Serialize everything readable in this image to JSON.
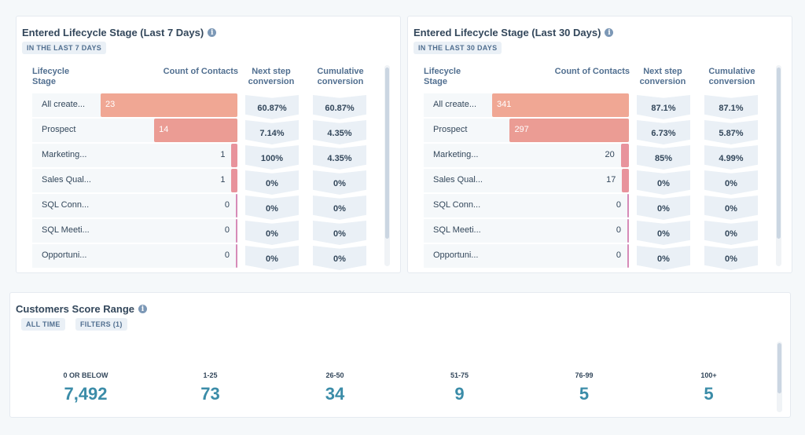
{
  "cards": [
    {
      "title": "Entered Lifecycle Stage (Last 7 Days)",
      "pill": "IN THE LAST 7 DAYS",
      "headers": {
        "stage": "Lifecycle Stage",
        "count": "Count of Contacts",
        "next": "Next step conversion",
        "cumulative": "Cumulative conversion"
      },
      "max": 23,
      "rows": [
        {
          "stage": "All create...",
          "count": 23,
          "count_label": "23",
          "next": "60.87%",
          "cumulative": "60.87%"
        },
        {
          "stage": "Prospect",
          "count": 14,
          "count_label": "14",
          "next": "7.14%",
          "cumulative": "4.35%"
        },
        {
          "stage": "Marketing...",
          "count": 1,
          "count_label": "1",
          "next": "100%",
          "cumulative": "4.35%"
        },
        {
          "stage": "Sales Qual...",
          "count": 1,
          "count_label": "1",
          "next": "0%",
          "cumulative": "0%"
        },
        {
          "stage": "SQL Conn...",
          "count": 0,
          "count_label": "0",
          "next": "0%",
          "cumulative": "0%"
        },
        {
          "stage": "SQL Meeti...",
          "count": 0,
          "count_label": "0",
          "next": "0%",
          "cumulative": "0%"
        },
        {
          "stage": "Opportuni...",
          "count": 0,
          "count_label": "0",
          "next": "0%",
          "cumulative": "0%"
        }
      ]
    },
    {
      "title": "Entered Lifecycle Stage (Last 30 Days)",
      "pill": "IN THE LAST 30 DAYS",
      "headers": {
        "stage": "Lifecycle Stage",
        "count": "Count of Contacts",
        "next": "Next step conversion",
        "cumulative": "Cumulative conversion"
      },
      "max": 341,
      "rows": [
        {
          "stage": "All create...",
          "count": 341,
          "count_label": "341",
          "next": "87.1%",
          "cumulative": "87.1%"
        },
        {
          "stage": "Prospect",
          "count": 297,
          "count_label": "297",
          "next": "6.73%",
          "cumulative": "5.87%"
        },
        {
          "stage": "Marketing...",
          "count": 20,
          "count_label": "20",
          "next": "85%",
          "cumulative": "4.99%"
        },
        {
          "stage": "Sales Qual...",
          "count": 17,
          "count_label": "17",
          "next": "0%",
          "cumulative": "0%"
        },
        {
          "stage": "SQL Conn...",
          "count": 0,
          "count_label": "0",
          "next": "0%",
          "cumulative": "0%"
        },
        {
          "stage": "SQL Meeti...",
          "count": 0,
          "count_label": "0",
          "next": "0%",
          "cumulative": "0%"
        },
        {
          "stage": "Opportuni...",
          "count": 0,
          "count_label": "0",
          "next": "0%",
          "cumulative": "0%"
        }
      ]
    }
  ],
  "bar_colors": [
    "#f0a794",
    "#eb9c94",
    "#e8939c",
    "#e8939c",
    "#d68bb8",
    "#d68bb8",
    "#d68bb8"
  ],
  "score": {
    "title": "Customers Score Range",
    "pills": [
      "ALL TIME",
      "FILTERS (1)"
    ],
    "ranges": [
      {
        "label": "0 OR BELOW",
        "value": "7,492"
      },
      {
        "label": "1-25",
        "value": "73"
      },
      {
        "label": "26-50",
        "value": "34"
      },
      {
        "label": "51-75",
        "value": "9"
      },
      {
        "label": "76-99",
        "value": "5"
      },
      {
        "label": "100+",
        "value": "5"
      }
    ]
  }
}
